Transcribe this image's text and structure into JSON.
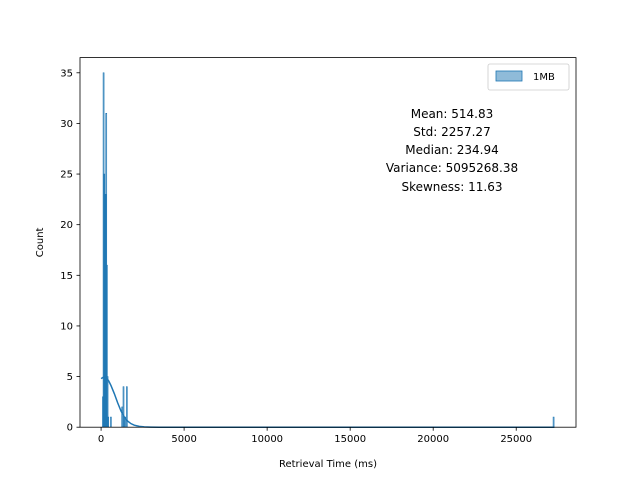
{
  "chart_data": {
    "type": "bar",
    "title": "",
    "xlabel": "Retrieval Time (ms)",
    "ylabel": "Count",
    "xlim": [
      -1270,
      28600
    ],
    "ylim": [
      0,
      36.5
    ],
    "xticks": [
      0,
      5000,
      10000,
      15000,
      20000,
      25000
    ],
    "yticks": [
      0,
      5,
      10,
      15,
      20,
      25,
      30,
      35
    ],
    "legend": {
      "placement": "top-right",
      "entries": [
        "1MB"
      ]
    },
    "grid": false,
    "series": [
      {
        "name": "1MB",
        "kind": "histogram",
        "color": "#1f77b4",
        "bin_width": 40,
        "bins": [
          {
            "x": 80,
            "count": 3
          },
          {
            "x": 120,
            "count": 35
          },
          {
            "x": 160,
            "count": 25
          },
          {
            "x": 200,
            "count": 23
          },
          {
            "x": 240,
            "count": 23
          },
          {
            "x": 280,
            "count": 31
          },
          {
            "x": 320,
            "count": 16
          },
          {
            "x": 360,
            "count": 5
          },
          {
            "x": 400,
            "count": 1
          },
          {
            "x": 560,
            "count": 1
          },
          {
            "x": 1240,
            "count": 2
          },
          {
            "x": 1320,
            "count": 4
          },
          {
            "x": 1360,
            "count": 1
          },
          {
            "x": 1440,
            "count": 1
          },
          {
            "x": 1520,
            "count": 4
          },
          {
            "x": 27220,
            "count": 1
          }
        ],
        "kde": [
          [
            0,
            4.8
          ],
          [
            150,
            4.95
          ],
          [
            300,
            4.9
          ],
          [
            450,
            4.6
          ],
          [
            600,
            4.1
          ],
          [
            800,
            3.3
          ],
          [
            1000,
            2.4
          ],
          [
            1200,
            1.6
          ],
          [
            1400,
            1.0
          ],
          [
            1600,
            0.6
          ],
          [
            1800,
            0.35
          ],
          [
            2000,
            0.2
          ],
          [
            2300,
            0.08
          ],
          [
            2600,
            0.03
          ],
          [
            3000,
            0.01
          ],
          [
            3500,
            0.0
          ],
          [
            27300,
            0.0
          ]
        ]
      }
    ],
    "stats": [
      "Mean: 514.83",
      "Std: 2257.27",
      "Median: 234.94",
      "Variance: 5095268.38",
      "Skewness: 11.63"
    ]
  }
}
